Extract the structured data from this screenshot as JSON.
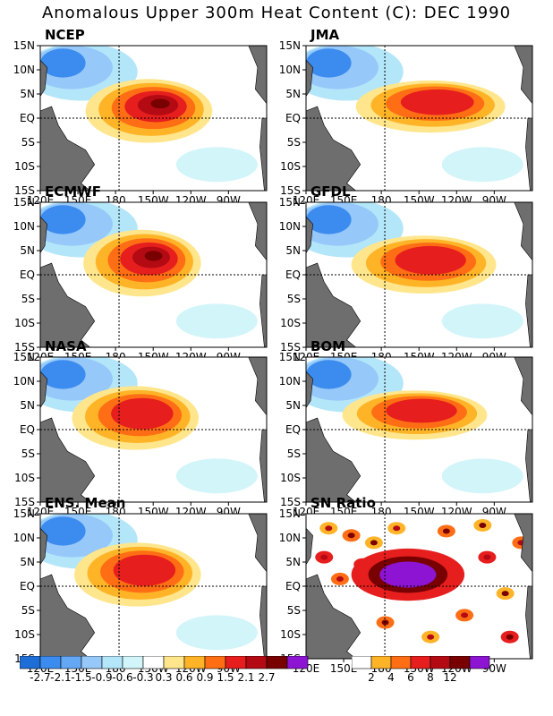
{
  "title": "Anomalous Upper 300m Heat Content (C): DEC 1990",
  "panels": [
    {
      "name": "NCEP",
      "type": "anomaly"
    },
    {
      "name": "JMA",
      "type": "anomaly"
    },
    {
      "name": "ECMWF",
      "type": "anomaly"
    },
    {
      "name": "GFDL",
      "type": "anomaly"
    },
    {
      "name": "NASA",
      "type": "anomaly"
    },
    {
      "name": "BOM",
      "type": "anomaly"
    },
    {
      "name": "ENS. Mean",
      "type": "anomaly"
    },
    {
      "name": "SN Ratio",
      "type": "snr"
    }
  ],
  "axes": {
    "lat_labels": [
      "15N",
      "10N",
      "5N",
      "EQ",
      "5S",
      "10S",
      "15S"
    ],
    "lon_labels": [
      "120E",
      "150E",
      "180",
      "150W",
      "120W",
      "90W"
    ]
  },
  "anomaly_scale": {
    "labels": [
      "-2.7",
      "-2.1",
      "-1.5",
      "-0.9",
      "-0.6",
      "-0.3",
      "0.3",
      "0.6",
      "0.9",
      "1.5",
      "2.1",
      "2.7"
    ],
    "colors": [
      "#1e6ed8",
      "#3c8cf0",
      "#64a8f5",
      "#96c8fa",
      "#b4e6fa",
      "#d2f5fa",
      "#ffffff",
      "#ffe68c",
      "#ffb428",
      "#ff6e14",
      "#e61e1e",
      "#b40a14",
      "#780000",
      "#8c14d2"
    ]
  },
  "snr_scale": {
    "labels": [
      "2",
      "4",
      "6",
      "8",
      "12"
    ],
    "colors": [
      "#ffffff",
      "#ffb428",
      "#ff6e14",
      "#e61e1e",
      "#b40a14",
      "#780000",
      "#8c14d2"
    ]
  }
}
